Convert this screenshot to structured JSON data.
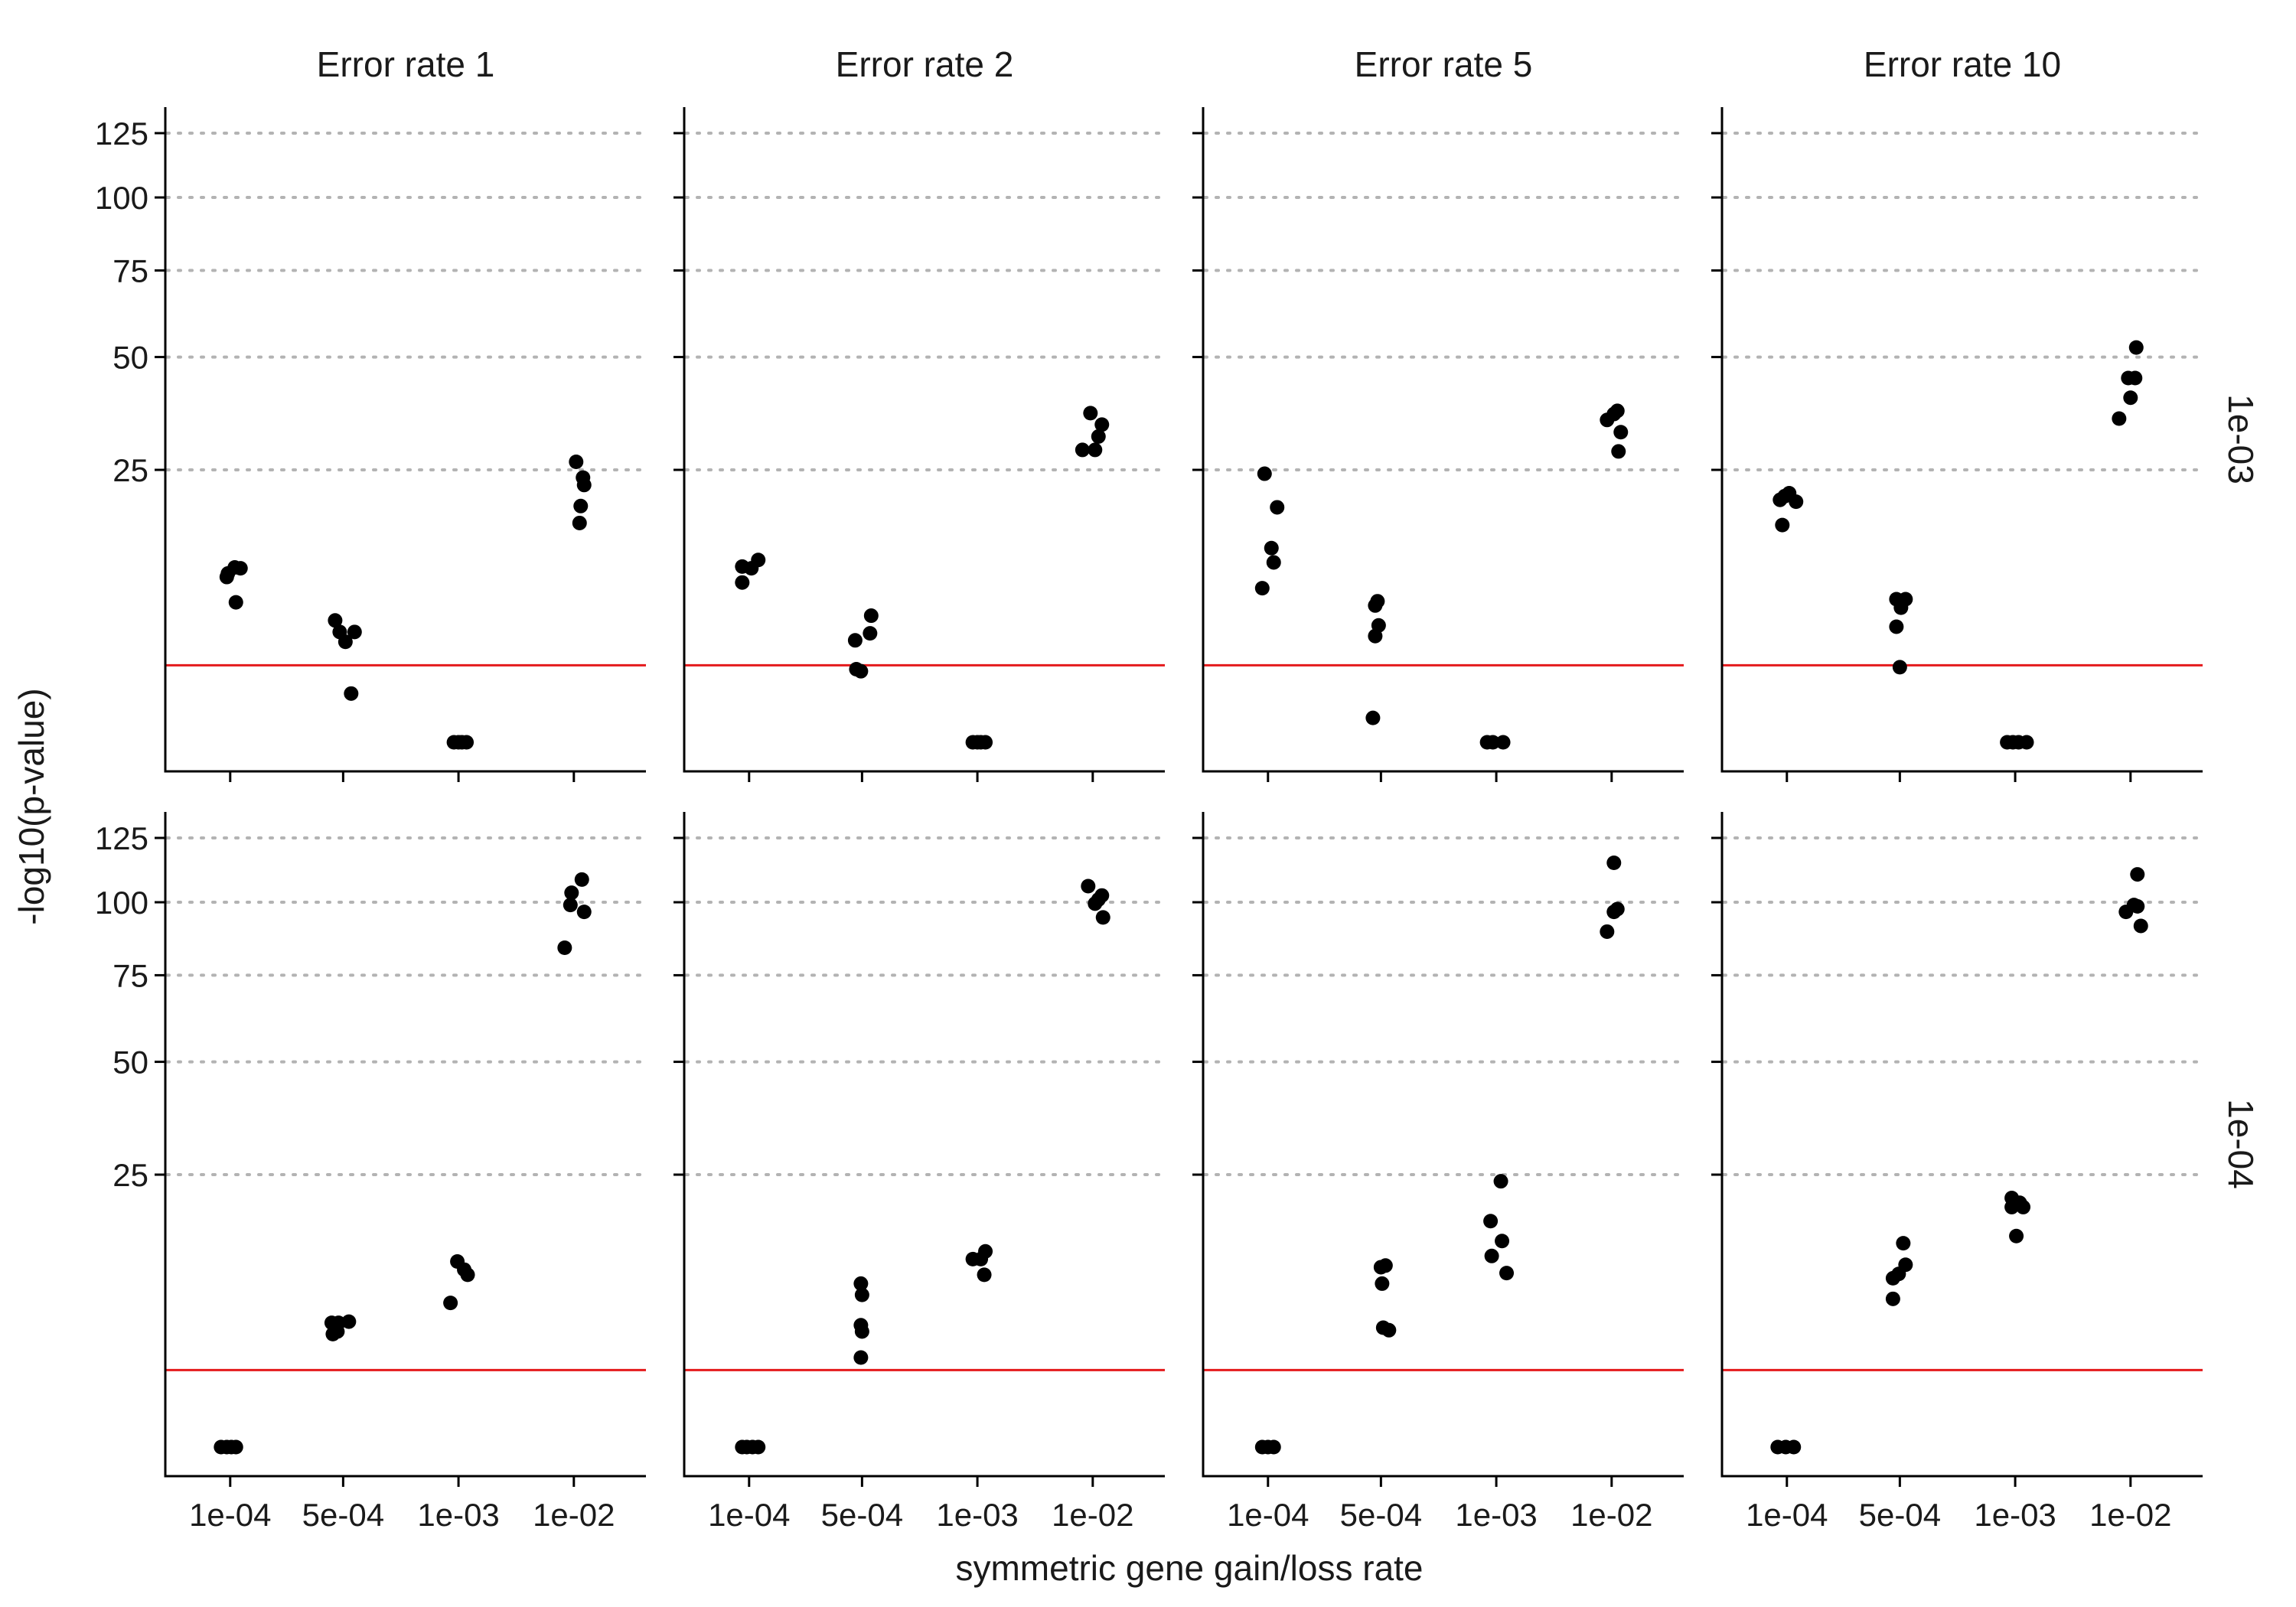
{
  "chart_data": {
    "type": "scatter",
    "layout": "facet_grid",
    "xlabel": "symmetric gene gain/loss rate",
    "ylabel": "-log10(p-value)",
    "x_categories": [
      "1e-04",
      "5e-04",
      "1e-03",
      "1e-02"
    ],
    "y_scale": "sqrt",
    "ylim": [
      0,
      125
    ],
    "y_ticks": [
      25,
      50,
      75,
      100,
      125
    ],
    "y_tick_labels": [
      "25",
      "50",
      "75",
      "100",
      "125"
    ],
    "grid": "horizontal dotted at y ticks",
    "reference_line": {
      "y": 2,
      "color": "#e41a1c"
    },
    "columns": [
      "Error rate 1",
      "Error rate 2",
      "Error rate 5",
      "Error rate 10"
    ],
    "rows": [
      "1e-03",
      "1e-04"
    ],
    "panels": [
      {
        "row": "1e-03",
        "column": "Error rate 1",
        "points": [
          {
            "x": "1e-04",
            "y": 9.6,
            "jitter": -0.02
          },
          {
            "x": "1e-04",
            "y": 9.2,
            "jitter": -0.03
          },
          {
            "x": "1e-04",
            "y": 10.3,
            "jitter": 0.04
          },
          {
            "x": "1e-04",
            "y": 10.2,
            "jitter": 0.09
          },
          {
            "x": "1e-04",
            "y": 6.6,
            "jitter": 0.05
          },
          {
            "x": "5e-04",
            "y": 5.0,
            "jitter": -0.07
          },
          {
            "x": "5e-04",
            "y": 4.1,
            "jitter": -0.03
          },
          {
            "x": "5e-04",
            "y": 3.4,
            "jitter": 0.02
          },
          {
            "x": "5e-04",
            "y": 4.1,
            "jitter": 0.1
          },
          {
            "x": "5e-04",
            "y": 0.8,
            "jitter": 0.07
          },
          {
            "x": "1e-03",
            "y": 0.0,
            "jitter": -0.04
          },
          {
            "x": "1e-03",
            "y": 0.0,
            "jitter": 0.0
          },
          {
            "x": "1e-03",
            "y": 0.0,
            "jitter": 0.03
          },
          {
            "x": "1e-03",
            "y": 0.0,
            "jitter": 0.07
          },
          {
            "x": "1e-02",
            "y": 26.5,
            "jitter": 0.02
          },
          {
            "x": "1e-02",
            "y": 23.6,
            "jitter": 0.08
          },
          {
            "x": "1e-02",
            "y": 22.3,
            "jitter": 0.09
          },
          {
            "x": "1e-02",
            "y": 18.8,
            "jitter": 0.06
          },
          {
            "x": "1e-02",
            "y": 16.2,
            "jitter": 0.05
          }
        ]
      },
      {
        "row": "1e-03",
        "column": "Error rate 2",
        "points": [
          {
            "x": "1e-04",
            "y": 10.4,
            "jitter": -0.06
          },
          {
            "x": "1e-04",
            "y": 8.6,
            "jitter": -0.06
          },
          {
            "x": "1e-04",
            "y": 10.2,
            "jitter": 0.02
          },
          {
            "x": "1e-04",
            "y": 11.2,
            "jitter": 0.08
          },
          {
            "x": "5e-04",
            "y": 3.5,
            "jitter": -0.06
          },
          {
            "x": "5e-04",
            "y": 5.4,
            "jitter": 0.08
          },
          {
            "x": "5e-04",
            "y": 4.0,
            "jitter": 0.07
          },
          {
            "x": "5e-04",
            "y": 1.8,
            "jitter": -0.05
          },
          {
            "x": "5e-04",
            "y": 1.7,
            "jitter": -0.01
          },
          {
            "x": "1e-03",
            "y": 0.0,
            "jitter": -0.04
          },
          {
            "x": "1e-03",
            "y": 0.0,
            "jitter": 0.0
          },
          {
            "x": "1e-03",
            "y": 0.0,
            "jitter": 0.03
          },
          {
            "x": "1e-03",
            "y": 0.0,
            "jitter": 0.07
          },
          {
            "x": "1e-02",
            "y": 36.5,
            "jitter": -0.02
          },
          {
            "x": "1e-02",
            "y": 34.0,
            "jitter": 0.08
          },
          {
            "x": "1e-02",
            "y": 31.5,
            "jitter": 0.05
          },
          {
            "x": "1e-02",
            "y": 28.8,
            "jitter": 0.02
          },
          {
            "x": "1e-02",
            "y": 28.8,
            "jitter": -0.09
          }
        ]
      },
      {
        "row": "1e-03",
        "column": "Error rate 5",
        "points": [
          {
            "x": "1e-04",
            "y": 24.3,
            "jitter": -0.03
          },
          {
            "x": "1e-04",
            "y": 18.6,
            "jitter": 0.08
          },
          {
            "x": "1e-04",
            "y": 12.7,
            "jitter": 0.03
          },
          {
            "x": "1e-04",
            "y": 10.9,
            "jitter": 0.05
          },
          {
            "x": "1e-04",
            "y": 8.0,
            "jitter": -0.05
          },
          {
            "x": "5e-04",
            "y": 6.7,
            "jitter": -0.03
          },
          {
            "x": "5e-04",
            "y": 6.3,
            "jitter": -0.05
          },
          {
            "x": "5e-04",
            "y": 4.6,
            "jitter": -0.02
          },
          {
            "x": "5e-04",
            "y": 3.8,
            "jitter": -0.05
          },
          {
            "x": "5e-04",
            "y": 0.2,
            "jitter": -0.07
          },
          {
            "x": "1e-03",
            "y": 0.0,
            "jitter": -0.08
          },
          {
            "x": "1e-03",
            "y": 0.0,
            "jitter": -0.03
          },
          {
            "x": "1e-03",
            "y": 0.0,
            "jitter": 0.06
          },
          {
            "x": "1e-02",
            "y": 35.0,
            "jitter": -0.04
          },
          {
            "x": "1e-02",
            "y": 36.3,
            "jitter": 0.02
          },
          {
            "x": "1e-02",
            "y": 37.0,
            "jitter": 0.05
          },
          {
            "x": "1e-02",
            "y": 32.4,
            "jitter": 0.08
          },
          {
            "x": "1e-02",
            "y": 28.5,
            "jitter": 0.06
          }
        ]
      },
      {
        "row": "1e-03",
        "column": "Error rate 10",
        "points": [
          {
            "x": "1e-04",
            "y": 19.8,
            "jitter": -0.06
          },
          {
            "x": "1e-04",
            "y": 20.4,
            "jitter": -0.02
          },
          {
            "x": "1e-04",
            "y": 20.9,
            "jitter": 0.02
          },
          {
            "x": "1e-04",
            "y": 19.5,
            "jitter": 0.08
          },
          {
            "x": "1e-04",
            "y": 15.9,
            "jitter": -0.04
          },
          {
            "x": "5e-04",
            "y": 6.9,
            "jitter": -0.03
          },
          {
            "x": "5e-04",
            "y": 6.9,
            "jitter": 0.05
          },
          {
            "x": "5e-04",
            "y": 6.1,
            "jitter": 0.01
          },
          {
            "x": "5e-04",
            "y": 4.5,
            "jitter": -0.03
          },
          {
            "x": "5e-04",
            "y": 1.9,
            "jitter": 0.0
          },
          {
            "x": "1e-03",
            "y": 0.0,
            "jitter": -0.07
          },
          {
            "x": "1e-03",
            "y": 0.0,
            "jitter": -0.02
          },
          {
            "x": "1e-03",
            "y": 0.0,
            "jitter": 0.03
          },
          {
            "x": "1e-03",
            "y": 0.0,
            "jitter": 0.1
          },
          {
            "x": "1e-02",
            "y": 52.5,
            "jitter": 0.05
          },
          {
            "x": "1e-02",
            "y": 44.7,
            "jitter": -0.02
          },
          {
            "x": "1e-02",
            "y": 44.7,
            "jitter": 0.04
          },
          {
            "x": "1e-02",
            "y": 40.0,
            "jitter": 0.0
          },
          {
            "x": "1e-02",
            "y": 35.3,
            "jitter": -0.1
          }
        ]
      },
      {
        "row": "1e-04",
        "column": "Error rate 1",
        "points": [
          {
            "x": "1e-04",
            "y": 0.0,
            "jitter": -0.08
          },
          {
            "x": "1e-04",
            "y": 0.0,
            "jitter": -0.03
          },
          {
            "x": "1e-04",
            "y": 0.0,
            "jitter": 0.01
          },
          {
            "x": "1e-04",
            "y": 0.0,
            "jitter": 0.05
          },
          {
            "x": "5e-04",
            "y": 5.2,
            "jitter": -0.1
          },
          {
            "x": "5e-04",
            "y": 5.2,
            "jitter": -0.04
          },
          {
            "x": "5e-04",
            "y": 5.3,
            "jitter": 0.05
          },
          {
            "x": "5e-04",
            "y": 4.3,
            "jitter": -0.09
          },
          {
            "x": "5e-04",
            "y": 4.5,
            "jitter": -0.05
          },
          {
            "x": "1e-03",
            "y": 11.6,
            "jitter": -0.01
          },
          {
            "x": "1e-03",
            "y": 10.6,
            "jitter": 0.05
          },
          {
            "x": "1e-03",
            "y": 10.0,
            "jitter": 0.08
          },
          {
            "x": "1e-03",
            "y": 7.0,
            "jitter": -0.07
          },
          {
            "x": "1e-02",
            "y": 108.5,
            "jitter": 0.07
          },
          {
            "x": "1e-02",
            "y": 103.5,
            "jitter": -0.02
          },
          {
            "x": "1e-02",
            "y": 99.0,
            "jitter": -0.03
          },
          {
            "x": "1e-02",
            "y": 96.5,
            "jitter": 0.09
          },
          {
            "x": "1e-02",
            "y": 84.0,
            "jitter": -0.08
          }
        ]
      },
      {
        "row": "1e-04",
        "column": "Error rate 2",
        "points": [
          {
            "x": "1e-04",
            "y": 0.0,
            "jitter": -0.06
          },
          {
            "x": "1e-04",
            "y": 0.0,
            "jitter": -0.02
          },
          {
            "x": "1e-04",
            "y": 0.0,
            "jitter": 0.03
          },
          {
            "x": "1e-04",
            "y": 0.0,
            "jitter": 0.08
          },
          {
            "x": "5e-04",
            "y": 9.0,
            "jitter": -0.01
          },
          {
            "x": "5e-04",
            "y": 7.8,
            "jitter": 0.0
          },
          {
            "x": "5e-04",
            "y": 5.0,
            "jitter": -0.01
          },
          {
            "x": "5e-04",
            "y": 4.5,
            "jitter": 0.0
          },
          {
            "x": "5e-04",
            "y": 2.7,
            "jitter": -0.01
          },
          {
            "x": "1e-03",
            "y": 11.9,
            "jitter": -0.04
          },
          {
            "x": "1e-03",
            "y": 11.9,
            "jitter": 0.03
          },
          {
            "x": "1e-03",
            "y": 12.9,
            "jitter": 0.07
          },
          {
            "x": "1e-03",
            "y": 10.0,
            "jitter": 0.06
          },
          {
            "x": "1e-02",
            "y": 106.0,
            "jitter": -0.04
          },
          {
            "x": "1e-02",
            "y": 102.5,
            "jitter": 0.08
          },
          {
            "x": "1e-02",
            "y": 101.0,
            "jitter": 0.05
          },
          {
            "x": "1e-02",
            "y": 99.5,
            "jitter": 0.02
          },
          {
            "x": "1e-02",
            "y": 94.5,
            "jitter": 0.09
          }
        ]
      },
      {
        "row": "1e-04",
        "column": "Error rate 5",
        "points": [
          {
            "x": "1e-04",
            "y": 0.0,
            "jitter": -0.05
          },
          {
            "x": "1e-04",
            "y": 0.0,
            "jitter": 0.0
          },
          {
            "x": "1e-04",
            "y": 0.0,
            "jitter": 0.05
          },
          {
            "x": "5e-04",
            "y": 11.1,
            "jitter": 0.04
          },
          {
            "x": "5e-04",
            "y": 10.9,
            "jitter": 0.0
          },
          {
            "x": "5e-04",
            "y": 9.0,
            "jitter": 0.01
          },
          {
            "x": "5e-04",
            "y": 4.8,
            "jitter": 0.02
          },
          {
            "x": "5e-04",
            "y": 4.6,
            "jitter": 0.07
          },
          {
            "x": "1e-03",
            "y": 23.8,
            "jitter": 0.04
          },
          {
            "x": "1e-03",
            "y": 17.2,
            "jitter": -0.05
          },
          {
            "x": "1e-03",
            "y": 14.3,
            "jitter": 0.05
          },
          {
            "x": "1e-03",
            "y": 12.3,
            "jitter": -0.04
          },
          {
            "x": "1e-03",
            "y": 10.2,
            "jitter": 0.09
          },
          {
            "x": "1e-02",
            "y": 115.0,
            "jitter": 0.02
          },
          {
            "x": "1e-02",
            "y": 97.5,
            "jitter": 0.05
          },
          {
            "x": "1e-02",
            "y": 96.5,
            "jitter": 0.02
          },
          {
            "x": "1e-02",
            "y": 89.5,
            "jitter": -0.04
          }
        ]
      },
      {
        "row": "1e-04",
        "column": "Error rate 10",
        "points": [
          {
            "x": "1e-04",
            "y": 0.0,
            "jitter": -0.08
          },
          {
            "x": "1e-04",
            "y": 0.0,
            "jitter": -0.01
          },
          {
            "x": "1e-04",
            "y": 0.0,
            "jitter": 0.06
          },
          {
            "x": "5e-04",
            "y": 14.0,
            "jitter": 0.03
          },
          {
            "x": "5e-04",
            "y": 11.2,
            "jitter": 0.05
          },
          {
            "x": "5e-04",
            "y": 10.1,
            "jitter": -0.01
          },
          {
            "x": "5e-04",
            "y": 9.6,
            "jitter": -0.06
          },
          {
            "x": "5e-04",
            "y": 7.4,
            "jitter": -0.06
          },
          {
            "x": "1e-03",
            "y": 20.9,
            "jitter": -0.03
          },
          {
            "x": "1e-03",
            "y": 20.1,
            "jitter": 0.04
          },
          {
            "x": "1e-03",
            "y": 19.4,
            "jitter": 0.07
          },
          {
            "x": "1e-03",
            "y": 19.4,
            "jitter": -0.03
          },
          {
            "x": "1e-03",
            "y": 15.0,
            "jitter": 0.01
          },
          {
            "x": "1e-02",
            "y": 110.5,
            "jitter": 0.06
          },
          {
            "x": "1e-02",
            "y": 99.0,
            "jitter": 0.03
          },
          {
            "x": "1e-02",
            "y": 98.5,
            "jitter": 0.06
          },
          {
            "x": "1e-02",
            "y": 96.5,
            "jitter": -0.04
          },
          {
            "x": "1e-02",
            "y": 91.5,
            "jitter": 0.09
          }
        ]
      }
    ]
  }
}
